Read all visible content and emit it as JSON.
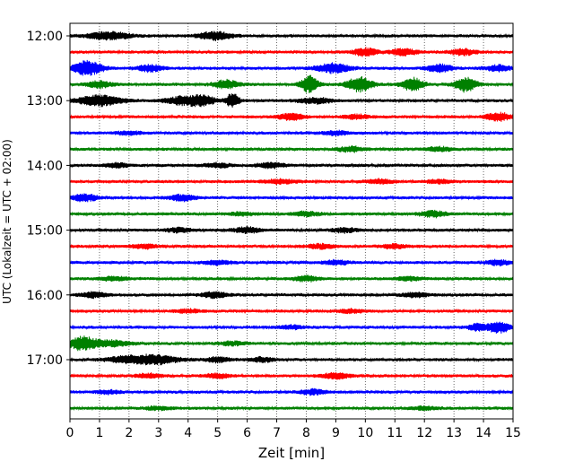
{
  "chart_data": {
    "type": "line",
    "title": "",
    "xlabel": "Zeit  [min]",
    "ylabel": "UTC (Lokalzeit = UTC + 02:00)",
    "xlim": [
      0,
      15
    ],
    "x_ticks": [
      0,
      1,
      2,
      3,
      4,
      5,
      6,
      7,
      8,
      9,
      10,
      11,
      12,
      13,
      14,
      15
    ],
    "x_tick_labels": [
      "0",
      "1",
      "2",
      "3",
      "4",
      "5",
      "6",
      "7",
      "8",
      "9",
      "10",
      "11",
      "12",
      "13",
      "14",
      "15"
    ],
    "y_tick_labels": [
      "12:00",
      "13:00",
      "14:00",
      "15:00",
      "16:00",
      "17:00"
    ],
    "y_tick_rows": [
      0,
      4,
      8,
      12,
      16,
      20
    ],
    "grid": "vertical dotted at each minute",
    "row_colors": [
      "#000000",
      "#ff0000",
      "#0000ff",
      "#008000"
    ],
    "rows": [
      {
        "start": "12:00",
        "bursts": [
          [
            1.3,
            0.5,
            0.45
          ],
          [
            4.9,
            0.4,
            0.45
          ]
        ]
      },
      {
        "start": "12:15",
        "bursts": [
          [
            10.0,
            0.3,
            0.45
          ],
          [
            11.3,
            0.3,
            0.4
          ],
          [
            13.3,
            0.3,
            0.35
          ]
        ]
      },
      {
        "start": "12:30",
        "bursts": [
          [
            0.6,
            0.35,
            0.85
          ],
          [
            2.7,
            0.3,
            0.4
          ],
          [
            8.9,
            0.4,
            0.55
          ],
          [
            12.5,
            0.3,
            0.45
          ],
          [
            14.5,
            0.3,
            0.35
          ]
        ]
      },
      {
        "start": "12:45",
        "bursts": [
          [
            1.0,
            0.3,
            0.4
          ],
          [
            5.3,
            0.3,
            0.5
          ],
          [
            8.1,
            0.2,
            1.0
          ],
          [
            9.8,
            0.3,
            0.9
          ],
          [
            11.6,
            0.25,
            0.8
          ],
          [
            13.4,
            0.25,
            0.85
          ]
        ]
      },
      {
        "start": "13:00",
        "bursts": [
          [
            1.0,
            0.5,
            0.65
          ],
          [
            3.8,
            0.4,
            0.45
          ],
          [
            4.5,
            0.3,
            0.55
          ],
          [
            5.5,
            0.15,
            0.85
          ],
          [
            8.3,
            0.4,
            0.3
          ]
        ]
      },
      {
        "start": "13:15",
        "bursts": [
          [
            7.5,
            0.3,
            0.4
          ],
          [
            9.7,
            0.3,
            0.25
          ],
          [
            14.5,
            0.3,
            0.45
          ]
        ]
      },
      {
        "start": "13:30",
        "bursts": [
          [
            2.0,
            0.3,
            0.2
          ],
          [
            9.0,
            0.3,
            0.25
          ]
        ]
      },
      {
        "start": "13:45",
        "bursts": [
          [
            9.5,
            0.3,
            0.3
          ],
          [
            12.5,
            0.3,
            0.25
          ]
        ]
      },
      {
        "start": "14:00",
        "bursts": [
          [
            1.6,
            0.3,
            0.25
          ],
          [
            5.0,
            0.3,
            0.25
          ],
          [
            6.8,
            0.3,
            0.3
          ]
        ]
      },
      {
        "start": "14:15",
        "bursts": [
          [
            7.1,
            0.4,
            0.25
          ],
          [
            10.5,
            0.3,
            0.25
          ],
          [
            12.5,
            0.3,
            0.2
          ]
        ]
      },
      {
        "start": "14:30",
        "bursts": [
          [
            0.5,
            0.3,
            0.4
          ],
          [
            3.8,
            0.3,
            0.35
          ]
        ]
      },
      {
        "start": "14:45",
        "bursts": [
          [
            5.8,
            0.3,
            0.2
          ],
          [
            8.0,
            0.3,
            0.25
          ],
          [
            12.3,
            0.3,
            0.35
          ]
        ]
      },
      {
        "start": "15:00",
        "bursts": [
          [
            3.7,
            0.3,
            0.25
          ],
          [
            6.0,
            0.3,
            0.35
          ],
          [
            9.3,
            0.3,
            0.25
          ]
        ]
      },
      {
        "start": "15:15",
        "bursts": [
          [
            2.5,
            0.3,
            0.25
          ],
          [
            8.5,
            0.3,
            0.25
          ],
          [
            11.0,
            0.3,
            0.25
          ]
        ]
      },
      {
        "start": "15:30",
        "bursts": [
          [
            5.0,
            0.3,
            0.25
          ],
          [
            9.0,
            0.3,
            0.25
          ],
          [
            14.5,
            0.3,
            0.3
          ]
        ]
      },
      {
        "start": "15:45",
        "bursts": [
          [
            1.5,
            0.3,
            0.25
          ],
          [
            8.0,
            0.3,
            0.3
          ],
          [
            11.5,
            0.3,
            0.2
          ]
        ]
      },
      {
        "start": "16:00",
        "bursts": [
          [
            0.8,
            0.3,
            0.3
          ],
          [
            4.9,
            0.3,
            0.35
          ],
          [
            11.7,
            0.3,
            0.25
          ]
        ]
      },
      {
        "start": "16:15",
        "bursts": [
          [
            4.0,
            0.3,
            0.2
          ],
          [
            9.5,
            0.3,
            0.2
          ]
        ]
      },
      {
        "start": "16:30",
        "bursts": [
          [
            7.5,
            0.3,
            0.2
          ],
          [
            13.8,
            0.2,
            0.45
          ],
          [
            14.5,
            0.25,
            0.7
          ]
        ]
      },
      {
        "start": "16:45",
        "bursts": [
          [
            0.4,
            0.3,
            0.75
          ],
          [
            1.3,
            0.5,
            0.35
          ],
          [
            5.5,
            0.3,
            0.2
          ]
        ]
      },
      {
        "start": "17:00",
        "bursts": [
          [
            2.0,
            0.5,
            0.4
          ],
          [
            3.0,
            0.5,
            0.45
          ],
          [
            5.0,
            0.3,
            0.3
          ],
          [
            6.5,
            0.3,
            0.25
          ]
        ]
      },
      {
        "start": "17:15",
        "bursts": [
          [
            2.7,
            0.3,
            0.25
          ],
          [
            5.0,
            0.3,
            0.25
          ],
          [
            9.0,
            0.3,
            0.35
          ]
        ]
      },
      {
        "start": "17:30",
        "bursts": [
          [
            1.3,
            0.3,
            0.2
          ],
          [
            8.2,
            0.3,
            0.3
          ]
        ]
      },
      {
        "start": "17:45",
        "bursts": [
          [
            3.0,
            0.3,
            0.2
          ],
          [
            12.0,
            0.3,
            0.2
          ]
        ]
      }
    ]
  }
}
